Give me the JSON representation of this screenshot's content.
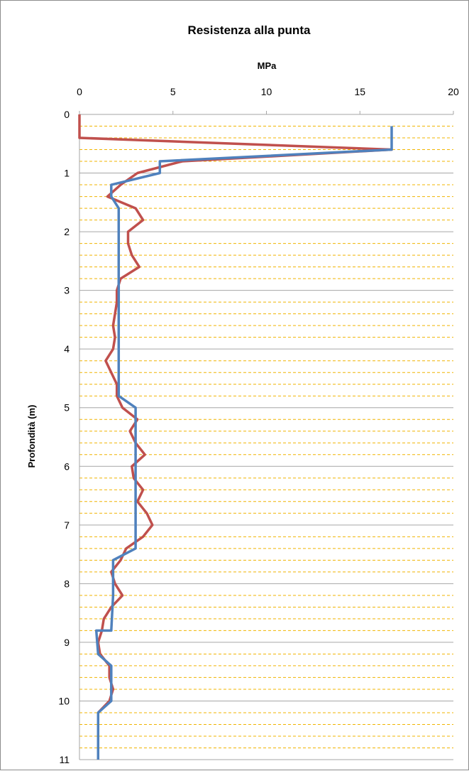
{
  "chart_data": {
    "type": "line",
    "title": "Resistenza alla punta",
    "xlabel": "MPa",
    "ylabel": "Profondità (m)",
    "xlim": [
      0,
      20
    ],
    "ylim": [
      0,
      11
    ],
    "y_inverted": true,
    "x_axis_position": "top",
    "xticks": [
      0,
      5,
      10,
      15,
      20
    ],
    "yticks": [
      0,
      1,
      2,
      3,
      4,
      5,
      6,
      7,
      8,
      9,
      10,
      11
    ],
    "grid": true,
    "minor_grid": "dashed every 0.2 m",
    "legend": "none",
    "colors": {
      "red_series": "#c0504d",
      "blue_series": "#4f81bd",
      "major_grid": "#a6a6a6",
      "minor_grid": "#f0b400"
    },
    "series": [
      {
        "color": "#c0504d",
        "points": [
          [
            0,
            0
          ],
          [
            0,
            0.4
          ],
          [
            16.7,
            0.6
          ],
          [
            5.5,
            0.8
          ],
          [
            3.1,
            1.0
          ],
          [
            2.2,
            1.2
          ],
          [
            1.5,
            1.4
          ],
          [
            3.0,
            1.6
          ],
          [
            3.4,
            1.8
          ],
          [
            2.6,
            2.0
          ],
          [
            2.6,
            2.2
          ],
          [
            2.8,
            2.4
          ],
          [
            3.2,
            2.6
          ],
          [
            2.2,
            2.8
          ],
          [
            2.0,
            3.0
          ],
          [
            2.0,
            3.2
          ],
          [
            1.9,
            3.4
          ],
          [
            1.8,
            3.6
          ],
          [
            1.9,
            3.8
          ],
          [
            1.8,
            4.0
          ],
          [
            1.4,
            4.2
          ],
          [
            1.7,
            4.4
          ],
          [
            2.0,
            4.6
          ],
          [
            2.0,
            4.8
          ],
          [
            2.3,
            5.0
          ],
          [
            3.1,
            5.2
          ],
          [
            2.7,
            5.4
          ],
          [
            3.0,
            5.6
          ],
          [
            3.5,
            5.8
          ],
          [
            2.8,
            6.0
          ],
          [
            2.9,
            6.2
          ],
          [
            3.4,
            6.4
          ],
          [
            3.1,
            6.6
          ],
          [
            3.6,
            6.8
          ],
          [
            3.9,
            7.0
          ],
          [
            3.4,
            7.2
          ],
          [
            2.5,
            7.4
          ],
          [
            2.2,
            7.6
          ],
          [
            1.7,
            7.8
          ],
          [
            1.9,
            8.0
          ],
          [
            2.3,
            8.2
          ],
          [
            1.7,
            8.4
          ],
          [
            1.3,
            8.6
          ],
          [
            1.2,
            8.8
          ],
          [
            1.0,
            9.0
          ],
          [
            1.1,
            9.2
          ],
          [
            1.6,
            9.4
          ],
          [
            1.6,
            9.6
          ],
          [
            1.8,
            9.8
          ],
          [
            1.6,
            10.0
          ],
          [
            1.0,
            10.2
          ]
        ]
      },
      {
        "color": "#4f81bd",
        "points": [
          [
            16.7,
            0.2
          ],
          [
            16.7,
            0.6
          ],
          [
            4.3,
            0.8
          ],
          [
            4.3,
            1.0
          ],
          [
            1.7,
            1.2
          ],
          [
            1.7,
            1.4
          ],
          [
            2.1,
            1.6
          ],
          [
            2.1,
            4.8
          ],
          [
            3.0,
            5.0
          ],
          [
            3.0,
            7.4
          ],
          [
            1.8,
            7.6
          ],
          [
            1.8,
            8.2
          ],
          [
            1.7,
            8.8
          ],
          [
            0.9,
            8.8
          ],
          [
            1.0,
            9.2
          ],
          [
            1.7,
            9.4
          ],
          [
            1.7,
            10.0
          ],
          [
            1.0,
            10.2
          ],
          [
            1.0,
            11.0
          ]
        ]
      }
    ]
  }
}
